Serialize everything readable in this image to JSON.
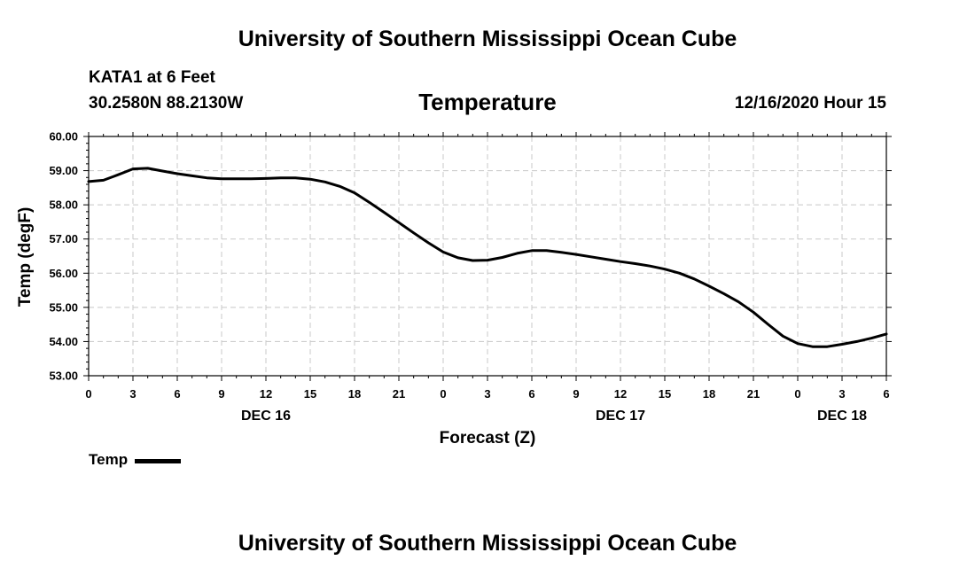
{
  "header": {
    "title": "University of Southern Mississippi Ocean Cube",
    "station": "KATA1 at 6 Feet",
    "coords": "30.2580N 88.2130W",
    "subtitle": "Temperature",
    "datetime": "12/16/2020 Hour 15"
  },
  "footer": {
    "title": "University of Southern Mississippi Ocean Cube"
  },
  "chart_data": {
    "type": "line",
    "ylabel": "Temp (degF)",
    "xlabel": "Forecast (Z)",
    "ylim": [
      53.0,
      60.0
    ],
    "xlim": [
      0,
      54
    ],
    "y_ticks": [
      53.0,
      54.0,
      55.0,
      56.0,
      57.0,
      58.0,
      59.0,
      60.0
    ],
    "y_tick_labels": [
      "53.00",
      "54.00",
      "55.00",
      "56.00",
      "57.00",
      "58.00",
      "59.00",
      "60.00"
    ],
    "x_ticks": [
      0,
      3,
      6,
      9,
      12,
      15,
      18,
      21,
      24,
      27,
      30,
      33,
      36,
      39,
      42,
      45,
      48,
      51,
      54
    ],
    "x_tick_labels": [
      "0",
      "3",
      "6",
      "9",
      "12",
      "15",
      "18",
      "21",
      "0",
      "3",
      "6",
      "9",
      "12",
      "15",
      "18",
      "21",
      "0",
      "3",
      "6"
    ],
    "day_labels": [
      {
        "hour": 12,
        "label": "DEC 16"
      },
      {
        "hour": 36,
        "label": "DEC 17"
      },
      {
        "hour": 51,
        "label": "DEC 18"
      }
    ],
    "grid": true,
    "legend_position": "bottom-left",
    "series": [
      {
        "name": "Temp",
        "color": "#000000",
        "x": [
          0,
          1,
          2,
          3,
          4,
          5,
          6,
          7,
          8,
          9,
          10,
          11,
          12,
          13,
          14,
          15,
          16,
          17,
          18,
          19,
          20,
          21,
          22,
          23,
          24,
          25,
          26,
          27,
          28,
          29,
          30,
          31,
          32,
          33,
          34,
          35,
          36,
          37,
          38,
          39,
          40,
          41,
          42,
          43,
          44,
          45,
          46,
          47,
          48,
          49,
          50,
          51,
          52,
          53,
          54
        ],
        "values": [
          58.68,
          58.72,
          58.88,
          59.05,
          59.07,
          58.99,
          58.91,
          58.85,
          58.79,
          58.76,
          58.76,
          58.76,
          58.77,
          58.79,
          58.79,
          58.75,
          58.67,
          58.54,
          58.35,
          58.07,
          57.78,
          57.48,
          57.18,
          56.89,
          56.62,
          56.45,
          56.37,
          56.38,
          56.46,
          56.58,
          56.66,
          56.66,
          56.61,
          56.55,
          56.48,
          56.41,
          56.34,
          56.28,
          56.21,
          56.12,
          56.0,
          55.83,
          55.62,
          55.4,
          55.16,
          54.86,
          54.5,
          54.16,
          53.94,
          53.85,
          53.85,
          53.92,
          54.0,
          54.1,
          54.22
        ]
      }
    ]
  }
}
